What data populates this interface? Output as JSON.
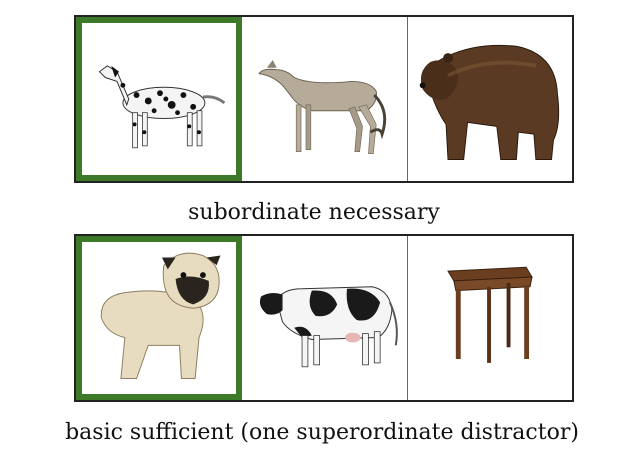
{
  "target_color": "#3c7a2a",
  "rows": [
    {
      "caption": "subordinate necessary",
      "images": [
        {
          "icon": "dalmatian-icon",
          "target": true
        },
        {
          "icon": "greyhound-icon",
          "target": false
        },
        {
          "icon": "bear-icon",
          "target": false
        }
      ]
    },
    {
      "caption": "basic sufficient (one superordinate distractor)",
      "images": [
        {
          "icon": "pug-icon",
          "target": true
        },
        {
          "icon": "cow-icon",
          "target": false
        },
        {
          "icon": "table-icon",
          "target": false
        }
      ]
    }
  ]
}
